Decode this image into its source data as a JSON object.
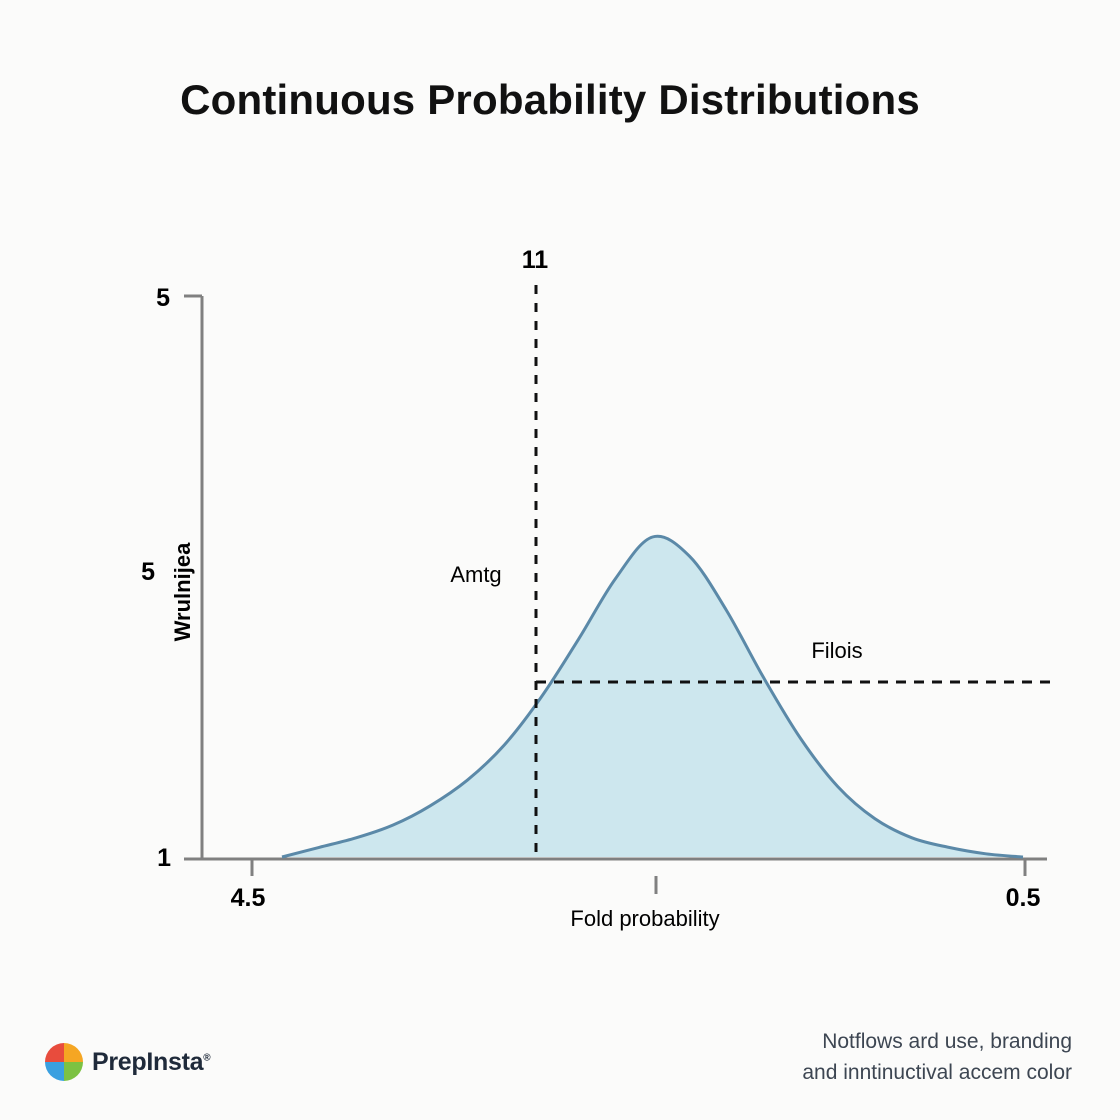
{
  "page": {
    "title": "Continuous Probability Distributions",
    "footnote_line1": "Notflows ard use, branding",
    "footnote_line2": "and inntinuctival accem color"
  },
  "brand": {
    "name": "PrepInsta",
    "mark": "®"
  },
  "colors": {
    "curve_fill": "#cde7ee",
    "curve_stroke": "#5b89a8",
    "axis": "#808080",
    "guide": "#111111",
    "logo": [
      "#e84c3d",
      "#f5a623",
      "#7cc242",
      "#3aa0e0"
    ]
  },
  "chart_data": {
    "type": "area",
    "title": "Continuous Probability Distributions",
    "xlabel": "Fold probability",
    "ylabel": "Wrulnijea",
    "x_tick_labels": [
      "4.5",
      "0.5"
    ],
    "y_tick_labels": [
      "5",
      "5",
      "1"
    ],
    "series": [
      {
        "x": [
          0.0,
          0.05,
          0.1,
          0.15,
          0.2,
          0.25,
          0.3,
          0.35,
          0.4,
          0.45,
          0.5,
          0.55,
          0.6,
          0.65,
          0.7,
          0.75,
          0.8,
          0.85,
          0.9,
          0.95,
          1.0
        ],
        "y": [
          0.0,
          0.03,
          0.06,
          0.1,
          0.16,
          0.24,
          0.35,
          0.5,
          0.68,
          0.87,
          1.0,
          0.94,
          0.77,
          0.56,
          0.37,
          0.22,
          0.12,
          0.06,
          0.03,
          0.01,
          0.0
        ]
      }
    ],
    "annotations": {
      "vertical_line_label": "11",
      "left_label": "Amtg",
      "right_label": "Filois"
    },
    "guide_lines": {
      "vertical_at_x": 0.33,
      "horizontal_at_y": 0.55
    },
    "grid": false
  }
}
